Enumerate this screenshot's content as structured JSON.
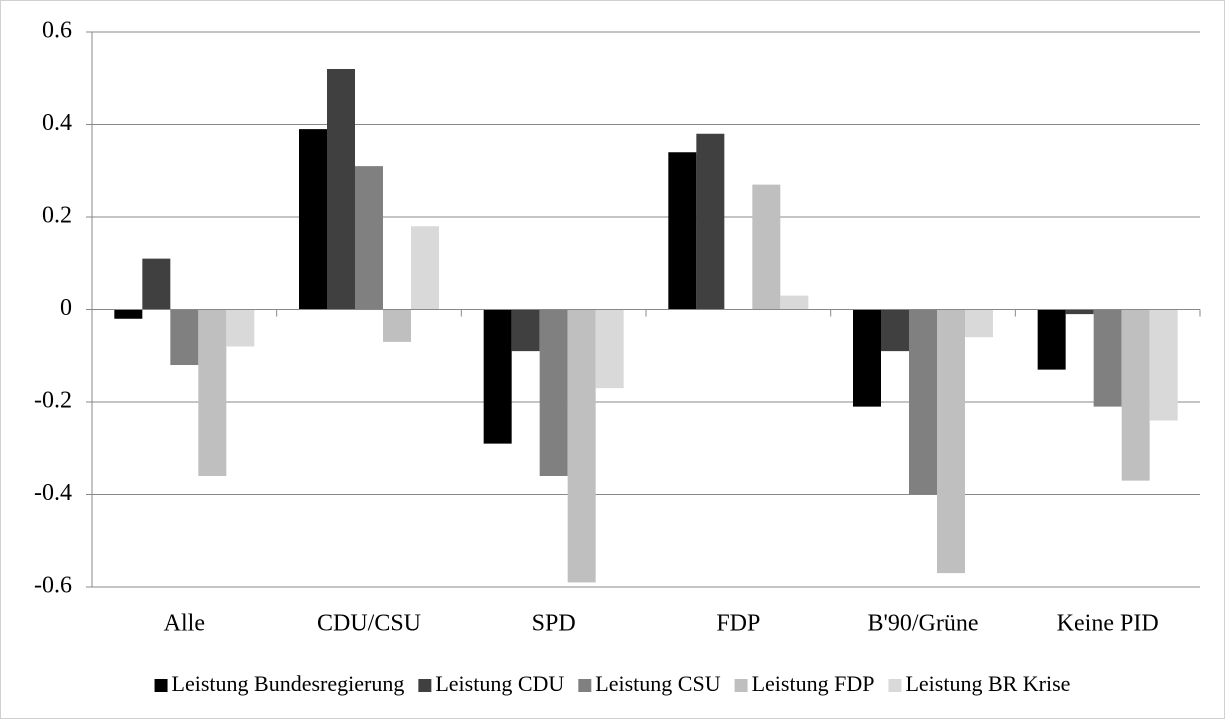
{
  "chart_data": {
    "type": "bar",
    "categories": [
      "Alle",
      "CDU/CSU",
      "SPD",
      "FDP",
      "B'90/Grüne",
      "Keine PID"
    ],
    "series": [
      {
        "name": "Leistung Bundesregierung",
        "color": "#000000",
        "values": [
          -0.02,
          0.39,
          -0.29,
          0.34,
          -0.21,
          -0.13
        ]
      },
      {
        "name": "Leistung CDU",
        "color": "#404040",
        "values": [
          0.11,
          0.52,
          -0.09,
          0.38,
          -0.09,
          -0.01
        ]
      },
      {
        "name": "Leistung CSU",
        "color": "#808080",
        "values": [
          -0.12,
          0.31,
          -0.36,
          null,
          -0.4,
          -0.21
        ]
      },
      {
        "name": "Leistung FDP",
        "color": "#bfbfbf",
        "values": [
          -0.36,
          -0.07,
          -0.59,
          0.27,
          -0.57,
          -0.37
        ]
      },
      {
        "name": "Leistung BR Krise",
        "color": "#d9d9d9",
        "values": [
          -0.08,
          0.18,
          -0.17,
          0.03,
          -0.06,
          -0.24
        ]
      }
    ],
    "ylim": [
      -0.6,
      0.6
    ],
    "yticks": [
      -0.6,
      -0.4,
      -0.2,
      0,
      0.2,
      0.4,
      0.6
    ],
    "grid": true,
    "legend": "bottom"
  }
}
